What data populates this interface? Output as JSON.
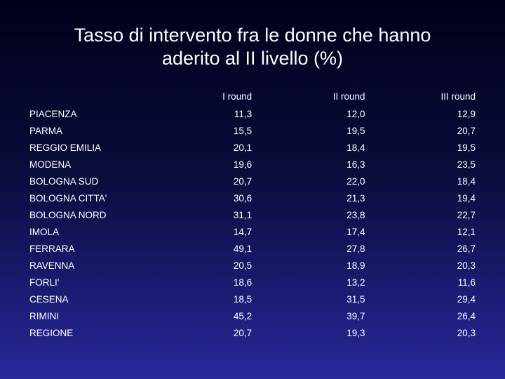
{
  "title": {
    "line1": "Tasso di intervento fra le donne che hanno",
    "line2": "aderito al II livello (%)"
  },
  "table": {
    "headers": [
      "",
      "I round",
      "II round",
      "III round"
    ],
    "rows": [
      {
        "name": "PIACENZA",
        "r1": "11,3",
        "r2": "12,0",
        "r3": "12,9"
      },
      {
        "name": "PARMA",
        "r1": "15,5",
        "r2": "19,5",
        "r3": "20,7"
      },
      {
        "name": "REGGIO EMILIA",
        "r1": "20,1",
        "r2": "18,4",
        "r3": "19,5"
      },
      {
        "name": "MODENA",
        "r1": "19,6",
        "r2": "16,3",
        "r3": "23,5"
      },
      {
        "name": "BOLOGNA SUD",
        "r1": "20,7",
        "r2": "22,0",
        "r3": "18,4"
      },
      {
        "name": "BOLOGNA CITTA'",
        "r1": "30,6",
        "r2": "21,3",
        "r3": "19,4"
      },
      {
        "name": "BOLOGNA NORD",
        "r1": "31,1",
        "r2": "23,8",
        "r3": "22,7"
      },
      {
        "name": "IMOLA",
        "r1": "14,7",
        "r2": "17,4",
        "r3": "12,1"
      },
      {
        "name": "FERRARA",
        "r1": "49,1",
        "r2": "27,8",
        "r3": "26,7"
      },
      {
        "name": "RAVENNA",
        "r1": "20,5",
        "r2": "18,9",
        "r3": "20,3"
      },
      {
        "name": "FORLI'",
        "r1": "18,6",
        "r2": "13,2",
        "r3": "11,6"
      },
      {
        "name": "CESENA",
        "r1": "18,5",
        "r2": "31,5",
        "r3": "29,4"
      },
      {
        "name": "RIMINI",
        "r1": "45,2",
        "r2": "39,7",
        "r3": "26,4"
      },
      {
        "name": "REGIONE",
        "r1": "20,7",
        "r2": "19,3",
        "r3": "20,3"
      }
    ]
  }
}
